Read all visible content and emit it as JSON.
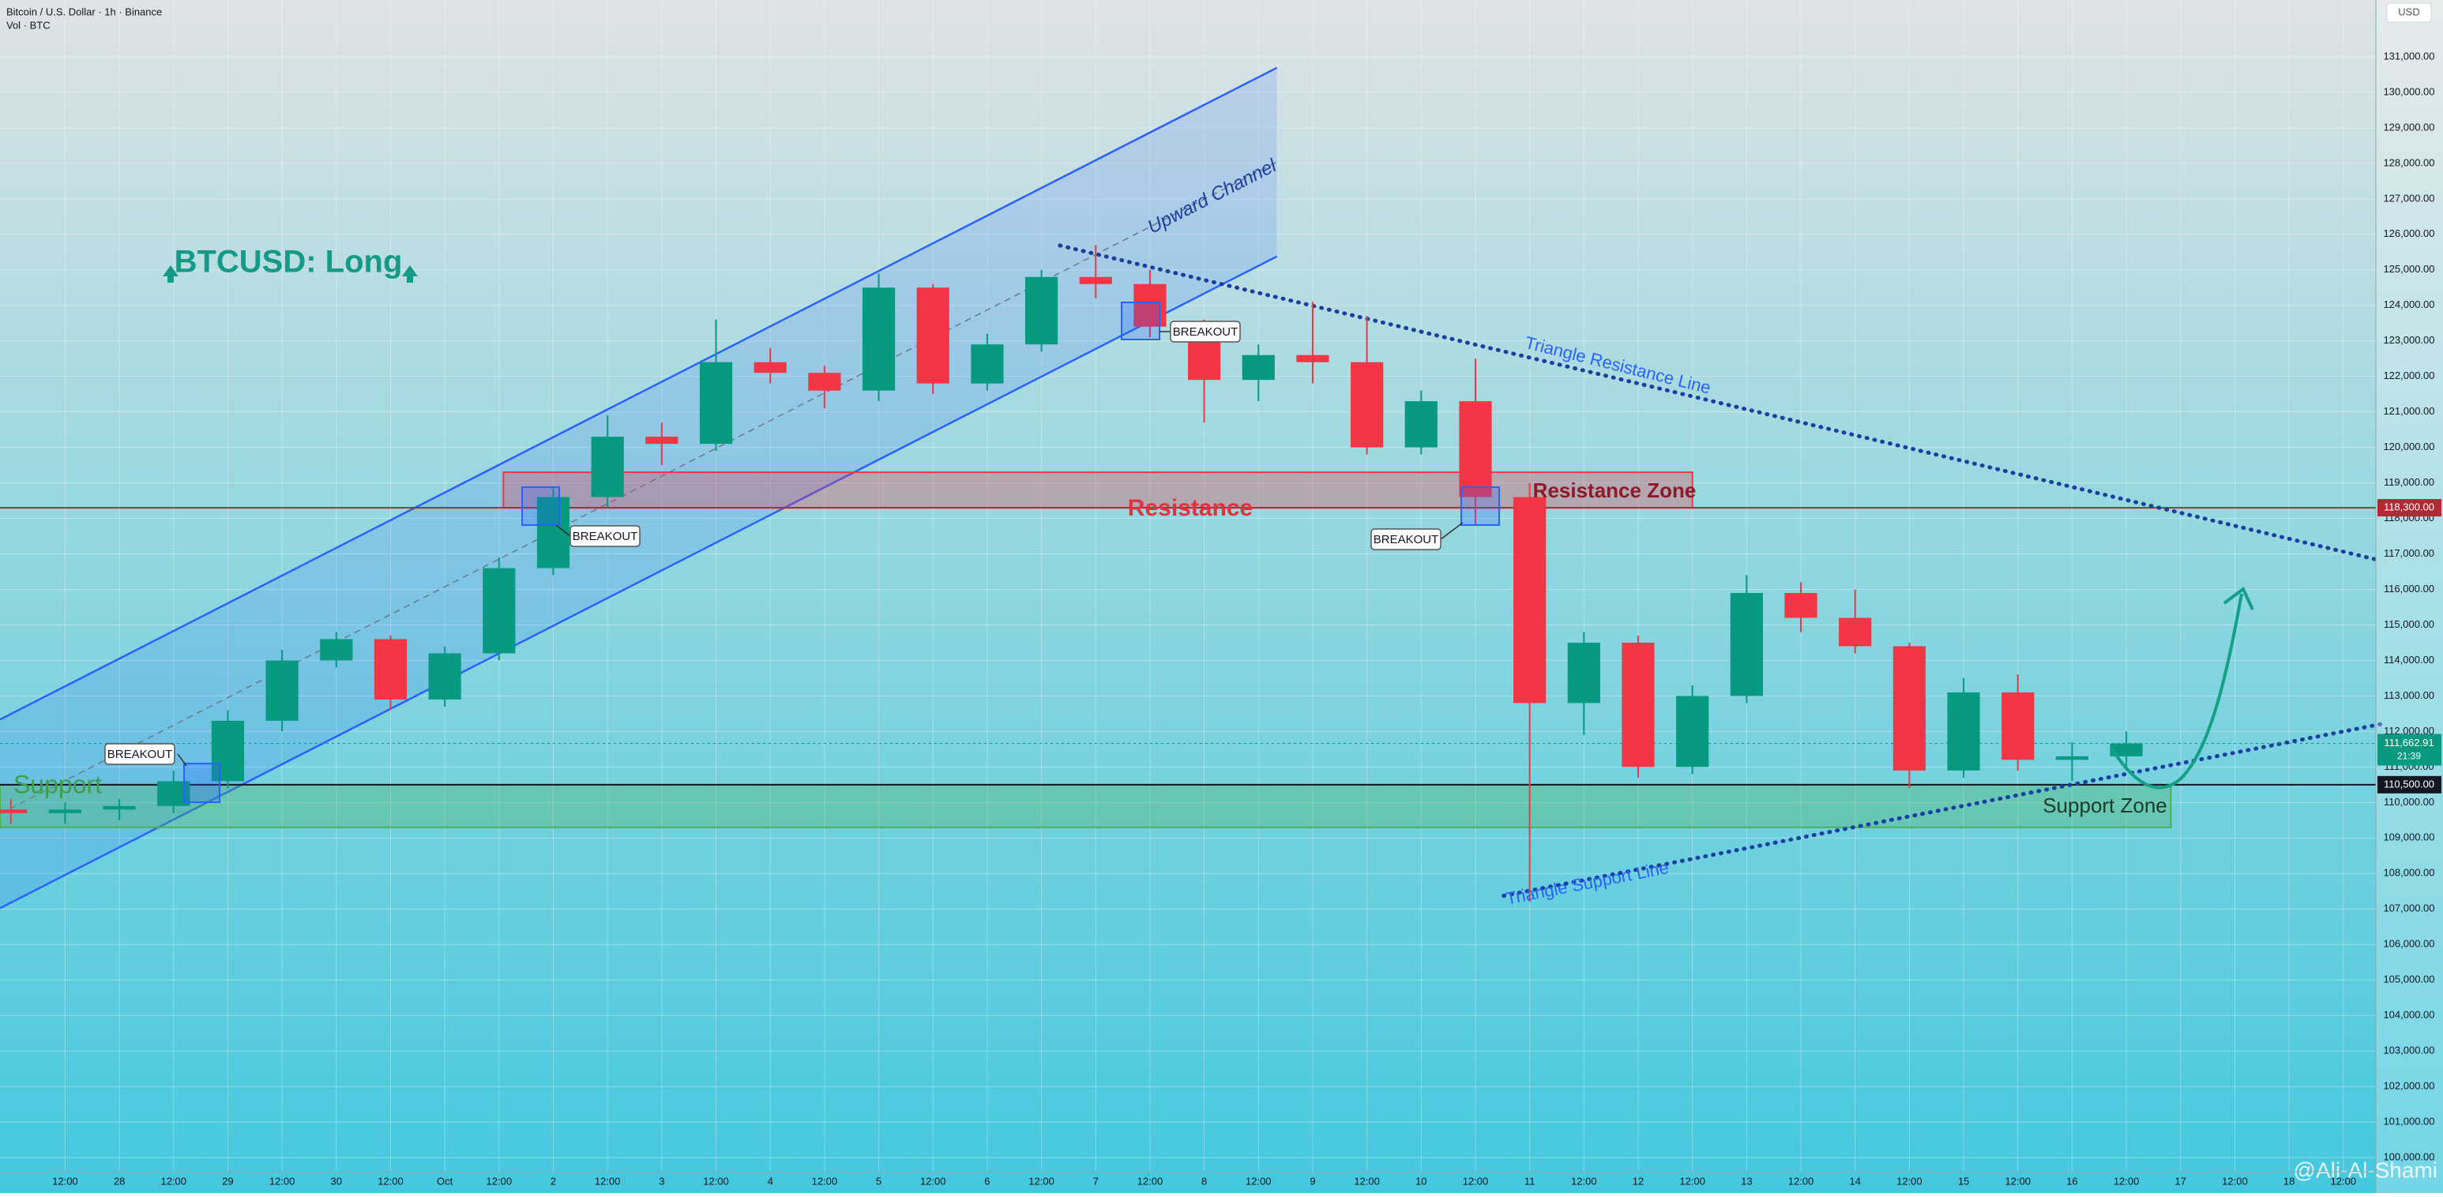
{
  "chart_data": {
    "type": "candlestick",
    "symbol": "Bitcoin / U.S. Dollar · 1h · Binance",
    "volume_label": "Vol · BTC",
    "currency": "USD",
    "title": "BTCUSD: Long",
    "watermark": "@Ali-Al-Shami",
    "up_color": "#089981",
    "down_color": "#f23645",
    "grid": true,
    "xlim": [
      -0.1,
      21.8
    ],
    "ylim": [
      99600,
      132600
    ],
    "x": [
      0,
      0.5,
      1,
      1.5,
      2,
      2.5,
      3,
      3.5,
      4,
      4.5,
      5,
      5.5,
      6,
      6.5,
      7,
      7.5,
      8,
      8.5,
      9,
      9.5,
      10,
      10.5,
      11,
      11.5,
      12,
      12.5,
      13,
      13.5,
      14,
      14.5,
      15,
      15.5,
      16,
      16.5,
      17,
      17.5,
      18,
      18.5,
      19,
      19.5
    ],
    "open": [
      109800,
      109700,
      109800,
      109900,
      110600,
      112300,
      114000,
      114600,
      112900,
      114200,
      116600,
      118600,
      120300,
      120100,
      122400,
      122100,
      121600,
      124500,
      121800,
      122900,
      124800,
      124600,
      123400,
      121900,
      122600,
      122400,
      120000,
      121300,
      118600,
      112800,
      114500,
      111000,
      113000,
      115900,
      115200,
      114400,
      110900,
      113100,
      111200,
      111300
    ],
    "high": [
      110100,
      110000,
      110100,
      110900,
      112600,
      114300,
      114800,
      114700,
      114400,
      116900,
      118900,
      120900,
      120700,
      123600,
      122800,
      122300,
      124900,
      124600,
      123200,
      125000,
      125700,
      125000,
      123600,
      122900,
      124100,
      123700,
      121600,
      122500,
      119000,
      114800,
      114700,
      113300,
      116400,
      116200,
      116000,
      114500,
      113500,
      113600,
      111700,
      112000
    ],
    "low": [
      109400,
      109400,
      109500,
      109700,
      110400,
      112000,
      113800,
      112600,
      112700,
      114000,
      116400,
      118300,
      119500,
      119900,
      121800,
      121100,
      121300,
      121500,
      121600,
      122700,
      124200,
      123100,
      120700,
      121300,
      121800,
      119800,
      119800,
      117800,
      107200,
      111900,
      110700,
      110800,
      112800,
      114800,
      114200,
      110400,
      110700,
      110900,
      110600,
      110900
    ],
    "close": [
      109700,
      109800,
      109900,
      110600,
      112300,
      114000,
      114600,
      112900,
      114200,
      116600,
      118600,
      120300,
      120100,
      122400,
      122100,
      121600,
      124500,
      121800,
      122900,
      124800,
      124600,
      123400,
      121900,
      122600,
      122400,
      120000,
      121300,
      118600,
      112800,
      114500,
      111000,
      113000,
      115900,
      115200,
      114400,
      110900,
      113100,
      111200,
      111300,
      111662.91
    ],
    "xticks": [
      {
        "value": 0.5,
        "label": "12:00"
      },
      {
        "value": 1,
        "label": "28"
      },
      {
        "value": 1.5,
        "label": "12:00"
      },
      {
        "value": 2,
        "label": "29"
      },
      {
        "value": 2.5,
        "label": "12:00"
      },
      {
        "value": 3,
        "label": "30"
      },
      {
        "value": 3.5,
        "label": "12:00"
      },
      {
        "value": 4,
        "label": "Oct"
      },
      {
        "value": 4.5,
        "label": "12:00"
      },
      {
        "value": 5,
        "label": "2"
      },
      {
        "value": 5.5,
        "label": "12:00"
      },
      {
        "value": 6,
        "label": "3"
      },
      {
        "value": 6.5,
        "label": "12:00"
      },
      {
        "value": 7,
        "label": "4"
      },
      {
        "value": 7.5,
        "label": "12:00"
      },
      {
        "value": 8,
        "label": "5"
      },
      {
        "value": 8.5,
        "label": "12:00"
      },
      {
        "value": 9,
        "label": "6"
      },
      {
        "value": 9.5,
        "label": "12:00"
      },
      {
        "value": 10,
        "label": "7"
      },
      {
        "value": 10.5,
        "label": "12:00"
      },
      {
        "value": 11,
        "label": "8"
      },
      {
        "value": 11.5,
        "label": "12:00"
      },
      {
        "value": 12,
        "label": "9"
      },
      {
        "value": 12.5,
        "label": "12:00"
      },
      {
        "value": 13,
        "label": "10"
      },
      {
        "value": 13.5,
        "label": "12:00"
      },
      {
        "value": 14,
        "label": "11"
      },
      {
        "value": 14.5,
        "label": "12:00"
      },
      {
        "value": 15,
        "label": "12"
      },
      {
        "value": 15.5,
        "label": "12:00"
      },
      {
        "value": 16,
        "label": "13"
      },
      {
        "value": 16.5,
        "label": "12:00"
      },
      {
        "value": 17,
        "label": "14"
      },
      {
        "value": 17.5,
        "label": "12:00"
      },
      {
        "value": 18,
        "label": "15"
      },
      {
        "value": 18.5,
        "label": "12:00"
      },
      {
        "value": 19,
        "label": "16"
      },
      {
        "value": 19.5,
        "label": "12:00"
      },
      {
        "value": 20,
        "label": "17"
      },
      {
        "value": 20.5,
        "label": "12:00"
      },
      {
        "value": 21,
        "label": "18"
      },
      {
        "value": 21.5,
        "label": "12:00"
      }
    ],
    "yticks": [
      {
        "value": 100000,
        "label": "100,000.00"
      },
      {
        "value": 101000,
        "label": "101,000.00"
      },
      {
        "value": 102000,
        "label": "102,000.00"
      },
      {
        "value": 103000,
        "label": "103,000.00"
      },
      {
        "value": 104000,
        "label": "104,000.00"
      },
      {
        "value": 105000,
        "label": "105,000.00"
      },
      {
        "value": 106000,
        "label": "106,000.00"
      },
      {
        "value": 107000,
        "label": "107,000.00"
      },
      {
        "value": 108000,
        "label": "108,000.00"
      },
      {
        "value": 109000,
        "label": "109,000.00"
      },
      {
        "value": 110000,
        "label": "110,000.00"
      },
      {
        "value": 111000,
        "label": "111,000.00"
      },
      {
        "value": 112000,
        "label": "112,000.00"
      },
      {
        "value": 113000,
        "label": "113,000.00"
      },
      {
        "value": 114000,
        "label": "114,000.00"
      },
      {
        "value": 115000,
        "label": "115,000.00"
      },
      {
        "value": 116000,
        "label": "116,000.00"
      },
      {
        "value": 117000,
        "label": "117,000.00"
      },
      {
        "value": 118000,
        "label": "118,000.00"
      },
      {
        "value": 119000,
        "label": "119,000.00"
      },
      {
        "value": 120000,
        "label": "120,000.00"
      },
      {
        "value": 121000,
        "label": "121,000.00"
      },
      {
        "value": 122000,
        "label": "122,000.00"
      },
      {
        "value": 123000,
        "label": "123,000.00"
      },
      {
        "value": 124000,
        "label": "124,000.00"
      },
      {
        "value": 125000,
        "label": "125,000.00"
      },
      {
        "value": 126000,
        "label": "126,000.00"
      },
      {
        "value": 127000,
        "label": "127,000.00"
      },
      {
        "value": 128000,
        "label": "128,000.00"
      },
      {
        "value": 129000,
        "label": "129,000.00"
      },
      {
        "value": 130000,
        "label": "130,000.00"
      },
      {
        "value": 131000,
        "label": "131,000.00"
      }
    ],
    "channel": {
      "label": "Upward Channel",
      "x": [
        -0.1,
        11.67
      ],
      "upper": [
        112335,
        130692
      ],
      "middle": [
        109680,
        128036
      ],
      "lower": [
        107022,
        125379
      ]
    },
    "triangle_resistance": {
      "label": "Triangle Resistance Line",
      "x": [
        9.67,
        21.84
      ],
      "y": [
        125686,
        116815
      ]
    },
    "triangle_support": {
      "label": "Triangle Support Line",
      "x": [
        13.76,
        21.84
      ],
      "y": [
        107372,
        112203
      ]
    },
    "zones": [
      {
        "label": "Resistance Zone",
        "x": [
          4.54,
          15.5
        ],
        "y": [
          118300,
          119300
        ],
        "color": "#f23645"
      },
      {
        "label": "Support Zone",
        "x": [
          -0.1,
          19.91
        ],
        "y": [
          109300,
          110500
        ],
        "color": "#4caf50"
      }
    ],
    "resistance_label": "Resistance",
    "support_label": "Support",
    "breakouts": [
      "BREAKOUT",
      "BREAKOUT",
      "BREAKOUT",
      "BREAKOUT"
    ],
    "levels": [
      {
        "value": 118300,
        "label": "118,300.00",
        "color": "#b22833"
      },
      {
        "value": 110500,
        "label": "110,500.00",
        "color": "#131722"
      }
    ],
    "last_price": {
      "value": 111662.91,
      "label": "111,662.91",
      "countdown": "21:39",
      "color": "#089981"
    }
  }
}
